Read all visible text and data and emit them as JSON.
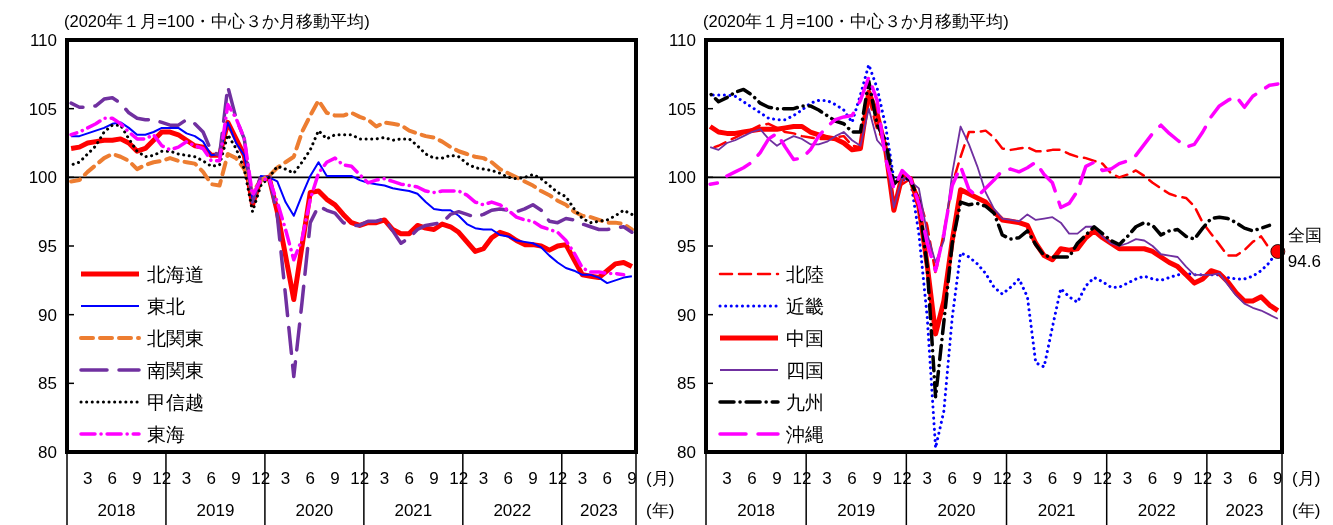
{
  "chart_data": [
    {
      "type": "line",
      "title": "(2020年１月=100・中心３か月移動平均)",
      "xlabel": "(月)\n(年)",
      "legend": "bottom left",
      "x": [
        "2018-01",
        "2018-02",
        "2018-03",
        "2018-04",
        "2018-05",
        "2018-06",
        "2018-07",
        "2018-08",
        "2018-09",
        "2018-10",
        "2018-11",
        "2018-12",
        "2019-01",
        "2019-02",
        "2019-03",
        "2019-04",
        "2019-05",
        "2019-06",
        "2019-07",
        "2019-08",
        "2019-09",
        "2019-10",
        "2019-11",
        "2019-12",
        "2020-01",
        "2020-02",
        "2020-03",
        "2020-04",
        "2020-05",
        "2020-06",
        "2020-07",
        "2020-08",
        "2020-09",
        "2020-10",
        "2020-11",
        "2020-12",
        "2021-01",
        "2021-02",
        "2021-03",
        "2021-04",
        "2021-05",
        "2021-06",
        "2021-07",
        "2021-08",
        "2021-09",
        "2021-10",
        "2021-11",
        "2021-12",
        "2022-01",
        "2022-02",
        "2022-03",
        "2022-04",
        "2022-05",
        "2022-06",
        "2022-07",
        "2022-08",
        "2022-09",
        "2022-10",
        "2022-11",
        "2022-12",
        "2023-01",
        "2023-02",
        "2023-03",
        "2023-04",
        "2023-05",
        "2023-06",
        "2023-07",
        "2023-08",
        "2023-09"
      ],
      "xlim": [
        "2017-12-16",
        "2023-09-16"
      ],
      "xticks": [
        {
          "value": "2018-03",
          "label": "3"
        },
        {
          "value": "2018-06",
          "label": "6"
        },
        {
          "value": "2018-09",
          "label": "9"
        },
        {
          "value": "2018-12",
          "label": "12"
        },
        {
          "value": "2019-03",
          "label": "3"
        },
        {
          "value": "2019-06",
          "label": "6"
        },
        {
          "value": "2019-09",
          "label": "9"
        },
        {
          "value": "2019-12",
          "label": "12"
        },
        {
          "value": "2020-03",
          "label": "3"
        },
        {
          "value": "2020-06",
          "label": "6"
        },
        {
          "value": "2020-09",
          "label": "9"
        },
        {
          "value": "2020-12",
          "label": "12"
        },
        {
          "value": "2021-03",
          "label": "3"
        },
        {
          "value": "2021-06",
          "label": "6"
        },
        {
          "value": "2021-09",
          "label": "9"
        },
        {
          "value": "2021-12",
          "label": "12"
        },
        {
          "value": "2022-03",
          "label": "3"
        },
        {
          "value": "2022-06",
          "label": "6"
        },
        {
          "value": "2022-09",
          "label": "9"
        },
        {
          "value": "2022-12",
          "label": "12"
        },
        {
          "value": "2023-03",
          "label": "3"
        },
        {
          "value": "2023-06",
          "label": "6"
        },
        {
          "value": "2023-09",
          "label": "9"
        }
      ],
      "ylim": [
        80,
        110
      ],
      "yticks": [
        80,
        85,
        90,
        95,
        100,
        105,
        110
      ],
      "ref_lines": [
        {
          "axis": "y",
          "value": 100,
          "color": "#000000"
        }
      ],
      "annotations": [
        "2018",
        "2019",
        "2020",
        "2021",
        "2022",
        "2023"
      ],
      "series": [
        {
          "name": "北海道",
          "color": "#ff0000",
          "line_style": "solid",
          "values": [
            102.1,
            102.2,
            102.5,
            102.6,
            102.7,
            102.7,
            102.8,
            102.5,
            101.9,
            102.1,
            102.7,
            103.3,
            103.3,
            103.1,
            102.7,
            102.3,
            102.2,
            101.6,
            101.6,
            104.0,
            102.8,
            101.6,
            98.0,
            99.9,
            100.0,
            97.5,
            94.3,
            91.1,
            95.0,
            98.9,
            99.0,
            98.4,
            98.0,
            97.3,
            96.7,
            96.5,
            96.7,
            96.7,
            96.9,
            96.2,
            95.9,
            95.9,
            96.5,
            96.3,
            96.2,
            96.6,
            96.4,
            96.0,
            95.3,
            94.6,
            94.8,
            95.6,
            96.0,
            95.8,
            95.4,
            95.1,
            95.1,
            95.0,
            94.7,
            95.0,
            95.1,
            94.0,
            92.9,
            92.8,
            92.7,
            93.2,
            93.7,
            93.8,
            93.5
          ]
        },
        {
          "name": "東北",
          "color": "#0000ff",
          "line_style": "solid",
          "values": [
            103.0,
            103.0,
            103.2,
            103.4,
            103.6,
            103.9,
            104.0,
            103.6,
            103.1,
            103.1,
            103.3,
            103.6,
            103.6,
            103.6,
            103.2,
            103.0,
            102.6,
            101.6,
            101.7,
            104.0,
            102.5,
            101.6,
            98.4,
            100.1,
            100.0,
            99.7,
            98.2,
            97.2,
            98.7,
            100.1,
            101.1,
            100.1,
            100.1,
            100.1,
            100.1,
            99.8,
            99.6,
            99.5,
            99.4,
            99.2,
            99.1,
            99.0,
            98.8,
            98.2,
            97.7,
            97.6,
            97.6,
            97.2,
            96.6,
            96.3,
            96.2,
            96.2,
            95.8,
            95.7,
            95.4,
            95.3,
            95.2,
            94.9,
            94.3,
            93.8,
            93.4,
            93.2,
            92.9,
            92.9,
            92.7,
            92.3,
            92.5,
            92.7,
            92.8
          ]
        },
        {
          "name": "北関東",
          "color": "#ed7d31",
          "line_style": "dashed",
          "values": [
            99.7,
            99.8,
            100.4,
            100.9,
            101.4,
            101.7,
            101.5,
            101.2,
            100.6,
            100.9,
            101.1,
            101.2,
            101.4,
            101.2,
            101.1,
            101.0,
            100.4,
            99.5,
            99.4,
            101.7,
            101.4,
            100.6,
            98.9,
            99.8,
            100.1,
            100.7,
            101.1,
            101.5,
            103.3,
            104.5,
            105.6,
            104.7,
            104.5,
            104.5,
            104.7,
            104.4,
            104.2,
            103.7,
            104.0,
            103.9,
            103.8,
            103.4,
            103.2,
            103.0,
            102.9,
            102.6,
            102.2,
            101.9,
            101.7,
            101.5,
            101.4,
            101.1,
            100.6,
            100.3,
            100.0,
            99.7,
            99.4,
            99.0,
            98.7,
            98.3,
            98.0,
            97.5,
            97.2,
            97.1,
            96.9,
            96.7,
            96.7,
            96.6,
            96.2
          ]
        },
        {
          "name": "南関東",
          "color": "#7030a0",
          "line_style": "longdash",
          "values": [
            105.4,
            105.1,
            105.1,
            105.2,
            105.7,
            105.8,
            105.4,
            104.7,
            104.3,
            104.2,
            104.2,
            104.0,
            103.8,
            103.8,
            104.2,
            103.9,
            103.3,
            101.9,
            101.6,
            106.6,
            104.3,
            102.8,
            98.2,
            100.1,
            100.1,
            97.2,
            91.4,
            85.5,
            90.9,
            96.7,
            97.9,
            97.6,
            97.4,
            96.7,
            96.5,
            96.5,
            96.8,
            96.8,
            97.0,
            96.1,
            95.2,
            95.6,
            96.2,
            96.5,
            96.6,
            96.7,
            97.3,
            97.5,
            97.3,
            97.1,
            97.3,
            97.6,
            97.7,
            97.6,
            97.5,
            97.7,
            98.0,
            97.6,
            96.8,
            96.7,
            97.0,
            96.9,
            96.6,
            96.4,
            96.2,
            96.2,
            96.3,
            96.4,
            96.0
          ]
        },
        {
          "name": "甲信越",
          "color": "#000000",
          "line_style": "dotted",
          "values": [
            100.9,
            101.1,
            101.7,
            102.3,
            103.3,
            103.8,
            103.8,
            102.8,
            101.9,
            101.5,
            101.6,
            101.9,
            101.9,
            101.7,
            101.6,
            101.5,
            101.2,
            100.8,
            100.9,
            103.1,
            102.1,
            100.6,
            97.5,
            99.4,
            100.0,
            100.8,
            100.6,
            100.3,
            101.1,
            102.0,
            103.4,
            102.8,
            103.1,
            103.1,
            103.1,
            102.8,
            102.8,
            102.8,
            102.9,
            102.7,
            102.8,
            102.8,
            102.3,
            101.7,
            101.4,
            101.4,
            101.6,
            101.5,
            101.0,
            100.7,
            100.6,
            100.5,
            100.3,
            100.0,
            99.9,
            100.0,
            100.2,
            99.9,
            99.4,
            98.9,
            98.6,
            97.7,
            97.0,
            96.7,
            96.8,
            96.9,
            97.2,
            97.6,
            97.3
          ]
        },
        {
          "name": "東海",
          "color": "#ff00ff",
          "line_style": "dashdot",
          "values": [
            103.1,
            103.3,
            103.6,
            103.9,
            104.3,
            104.3,
            103.9,
            103.3,
            102.8,
            102.8,
            103.1,
            102.3,
            102.0,
            102.2,
            102.6,
            102.3,
            102.1,
            101.2,
            101.2,
            105.3,
            104.3,
            102.8,
            98.7,
            99.8,
            99.9,
            98.2,
            96.2,
            94.0,
            95.5,
            98.4,
            100.3,
            101.1,
            101.4,
            100.9,
            100.8,
            100.2,
            99.6,
            99.8,
            99.9,
            99.7,
            99.5,
            99.4,
            99.3,
            99.0,
            98.9,
            99.0,
            99.0,
            99.0,
            98.7,
            98.2,
            98.0,
            98.2,
            98.0,
            97.6,
            97.1,
            96.9,
            96.8,
            96.4,
            96.2,
            96.0,
            95.4,
            94.5,
            93.4,
            93.1,
            93.1,
            93.0,
            93.0,
            92.9,
            null
          ]
        }
      ]
    },
    {
      "type": "line",
      "title": "(2020年１月=100・中心３か月移動平均)",
      "xlabel": "(月)\n(年)",
      "legend": "bottom left",
      "x": [
        "2018-01",
        "2018-02",
        "2018-03",
        "2018-04",
        "2018-05",
        "2018-06",
        "2018-07",
        "2018-08",
        "2018-09",
        "2018-10",
        "2018-11",
        "2018-12",
        "2019-01",
        "2019-02",
        "2019-03",
        "2019-04",
        "2019-05",
        "2019-06",
        "2019-07",
        "2019-08",
        "2019-09",
        "2019-10",
        "2019-11",
        "2019-12",
        "2020-01",
        "2020-02",
        "2020-03",
        "2020-04",
        "2020-05",
        "2020-06",
        "2020-07",
        "2020-08",
        "2020-09",
        "2020-10",
        "2020-11",
        "2020-12",
        "2021-01",
        "2021-02",
        "2021-03",
        "2021-04",
        "2021-05",
        "2021-06",
        "2021-07",
        "2021-08",
        "2021-09",
        "2021-10",
        "2021-11",
        "2021-12",
        "2022-01",
        "2022-02",
        "2022-03",
        "2022-04",
        "2022-05",
        "2022-06",
        "2022-07",
        "2022-08",
        "2022-09",
        "2022-10",
        "2022-11",
        "2022-12",
        "2023-01",
        "2023-02",
        "2023-03",
        "2023-04",
        "2023-05",
        "2023-06",
        "2023-07",
        "2023-08",
        "2023-09"
      ],
      "xlim": [
        "2017-12-16",
        "2023-09-16"
      ],
      "xticks": [
        {
          "value": "2018-03",
          "label": "3"
        },
        {
          "value": "2018-06",
          "label": "6"
        },
        {
          "value": "2018-09",
          "label": "9"
        },
        {
          "value": "2018-12",
          "label": "12"
        },
        {
          "value": "2019-03",
          "label": "3"
        },
        {
          "value": "2019-06",
          "label": "6"
        },
        {
          "value": "2019-09",
          "label": "9"
        },
        {
          "value": "2019-12",
          "label": "12"
        },
        {
          "value": "2020-03",
          "label": "3"
        },
        {
          "value": "2020-06",
          "label": "6"
        },
        {
          "value": "2020-09",
          "label": "9"
        },
        {
          "value": "2020-12",
          "label": "12"
        },
        {
          "value": "2021-03",
          "label": "3"
        },
        {
          "value": "2021-06",
          "label": "6"
        },
        {
          "value": "2021-09",
          "label": "9"
        },
        {
          "value": "2021-12",
          "label": "12"
        },
        {
          "value": "2022-03",
          "label": "3"
        },
        {
          "value": "2022-06",
          "label": "6"
        },
        {
          "value": "2022-09",
          "label": "9"
        },
        {
          "value": "2022-12",
          "label": "12"
        },
        {
          "value": "2023-03",
          "label": "3"
        },
        {
          "value": "2023-06",
          "label": "6"
        },
        {
          "value": "2023-09",
          "label": "9"
        }
      ],
      "ylim": [
        80,
        110
      ],
      "yticks": [
        80,
        85,
        90,
        95,
        100,
        105,
        110
      ],
      "ref_lines": [
        {
          "axis": "y",
          "value": 100,
          "color": "#000000"
        }
      ],
      "annotations": [
        "2018",
        "2019",
        "2020",
        "2021",
        "2022",
        "2023",
        {
          "text": "全国\n94.6",
          "x": "2023-09",
          "y": 94.6
        }
      ],
      "series": [
        {
          "name": "北陸",
          "color": "#ff0000",
          "line_style": "dashed",
          "values": [
            102.1,
            102.3,
            102.6,
            102.9,
            103.2,
            103.5,
            103.8,
            103.9,
            103.6,
            103.3,
            103.2,
            103.0,
            102.9,
            102.8,
            102.8,
            102.9,
            103.0,
            102.3,
            102.2,
            105.8,
            103.5,
            102.5,
            98.0,
            99.5,
            99.9,
            98.5,
            96.5,
            93.0,
            96.0,
            99.5,
            101.5,
            103.3,
            103.3,
            103.4,
            102.9,
            102.1,
            102.0,
            102.1,
            102.2,
            101.9,
            101.9,
            102.0,
            102.0,
            101.7,
            101.5,
            101.4,
            101.2,
            101.0,
            100.3,
            100.0,
            100.2,
            100.5,
            100.1,
            99.6,
            99.2,
            98.8,
            98.6,
            98.5,
            97.9,
            96.7,
            95.9,
            95.1,
            94.3,
            94.3,
            94.7,
            95.3,
            95.7,
            94.8,
            94.6
          ]
        },
        {
          "name": "近畿",
          "color": "#0000ff",
          "line_style": "dotted",
          "values": [
            106.0,
            106.0,
            106.0,
            105.9,
            105.5,
            105.1,
            104.7,
            104.3,
            104.2,
            104.2,
            104.5,
            104.9,
            105.4,
            105.6,
            105.6,
            105.3,
            104.9,
            104.0,
            106.0,
            108.2,
            106.5,
            103.8,
            99.9,
            99.8,
            99.8,
            95.9,
            89.8,
            80.3,
            83.0,
            89.8,
            94.5,
            94.2,
            93.7,
            93.0,
            92.0,
            91.5,
            92.0,
            92.6,
            91.3,
            86.5,
            86.2,
            89.1,
            91.9,
            91.3,
            90.9,
            92.1,
            92.7,
            92.4,
            92.0,
            92.0,
            92.3,
            92.6,
            92.8,
            92.6,
            92.5,
            92.7,
            92.9,
            93.0,
            92.9,
            92.9,
            92.9,
            92.9,
            92.7,
            92.6,
            92.6,
            92.8,
            93.2,
            93.8,
            94.7
          ]
        },
        {
          "name": "中国",
          "color": "#ff0000",
          "line_style": "solid",
          "values": [
            103.7,
            103.3,
            103.2,
            103.2,
            103.3,
            103.4,
            103.5,
            103.5,
            103.5,
            103.6,
            103.7,
            103.7,
            103.3,
            103.1,
            102.9,
            102.8,
            102.5,
            102.0,
            102.1,
            106.2,
            104.6,
            102.1,
            97.6,
            100.1,
            99.9,
            97.9,
            93.6,
            88.6,
            91.0,
            95.4,
            99.1,
            98.8,
            98.5,
            98.2,
            97.5,
            96.9,
            96.8,
            96.7,
            96.5,
            95.2,
            94.3,
            94.0,
            94.8,
            94.7,
            94.8,
            95.6,
            96.1,
            95.6,
            95.2,
            94.8,
            94.8,
            94.8,
            94.8,
            94.6,
            94.2,
            93.8,
            93.5,
            92.9,
            92.3,
            92.6,
            93.2,
            93.0,
            92.4,
            91.6,
            91.0,
            91.0,
            91.3,
            90.7,
            90.3
          ]
        },
        {
          "name": "四国",
          "color": "#7030a0",
          "line_style": "solid",
          "values": [
            102.2,
            102.0,
            102.5,
            102.7,
            103.0,
            103.3,
            103.5,
            102.8,
            102.3,
            102.7,
            103.0,
            102.8,
            102.4,
            102.4,
            102.6,
            103.0,
            103.3,
            102.7,
            102.3,
            105.0,
            102.7,
            102.0,
            97.8,
            100.0,
            99.7,
            99.2,
            95.9,
            93.8,
            95.4,
            100.3,
            103.7,
            102.4,
            100.8,
            98.9,
            97.7,
            97.0,
            96.9,
            96.8,
            97.3,
            96.9,
            97.0,
            97.1,
            96.7,
            95.9,
            95.9,
            96.4,
            96.4,
            95.7,
            95.2,
            95.0,
            95.2,
            95.5,
            95.4,
            95.0,
            94.4,
            94.3,
            94.2,
            93.5,
            92.9,
            92.9,
            92.9,
            93.0,
            92.2,
            91.4,
            90.8,
            90.5,
            90.3,
            90.0,
            89.7
          ]
        },
        {
          "name": "九州",
          "color": "#000000",
          "line_style": "dashdot",
          "values": [
            106.1,
            105.5,
            105.8,
            106.2,
            106.4,
            106.0,
            105.4,
            105.1,
            105.0,
            105.0,
            105.0,
            105.2,
            105.2,
            104.9,
            104.5,
            104.1,
            103.9,
            103.3,
            103.3,
            107.0,
            103.8,
            102.7,
            99.5,
            100.1,
            99.8,
            98.3,
            93.5,
            84.0,
            89.5,
            95.2,
            98.2,
            98.0,
            98.1,
            97.9,
            97.4,
            95.8,
            95.5,
            95.6,
            96.1,
            95.1,
            94.3,
            94.2,
            94.2,
            94.2,
            95.2,
            95.8,
            96.4,
            95.9,
            95.4,
            95.1,
            95.7,
            96.4,
            96.7,
            96.5,
            95.8,
            96.1,
            96.2,
            95.7,
            95.5,
            96.3,
            97.0,
            97.1,
            97.0,
            96.7,
            96.3,
            96.1,
            96.3,
            96.5,
            null
          ]
        },
        {
          "name": "沖縄",
          "color": "#ff00ff",
          "line_style": "longdash",
          "values": [
            99.5,
            99.6,
            100.1,
            100.4,
            100.7,
            101.1,
            101.8,
            102.8,
            103.2,
            102.2,
            101.3,
            101.4,
            102.0,
            103.0,
            103.7,
            104.2,
            104.4,
            104.5,
            105.6,
            107.3,
            105.6,
            101.4,
            99.2,
            100.5,
            99.9,
            98.1,
            95.2,
            93.2,
            95.9,
            99.4,
            100.8,
            99.1,
            98.6,
            99.2,
            99.8,
            100.5,
            100.6,
            100.4,
            100.7,
            101.1,
            100.2,
            99.6,
            97.8,
            98.1,
            99.0,
            100.8,
            101.1,
            100.5,
            100.6,
            101.0,
            101.2,
            101.6,
            102.4,
            103.2,
            103.8,
            103.2,
            102.7,
            102.2,
            102.4,
            103.3,
            104.4,
            105.2,
            105.6,
            105.9,
            105.1,
            105.9,
            106.3,
            106.7,
            106.8
          ]
        },
        {
          "type": "scatter",
          "marker": "circle",
          "color": "#ff0000",
          "x": [
            "2023-09"
          ],
          "values": [
            94.6
          ]
        }
      ]
    }
  ]
}
